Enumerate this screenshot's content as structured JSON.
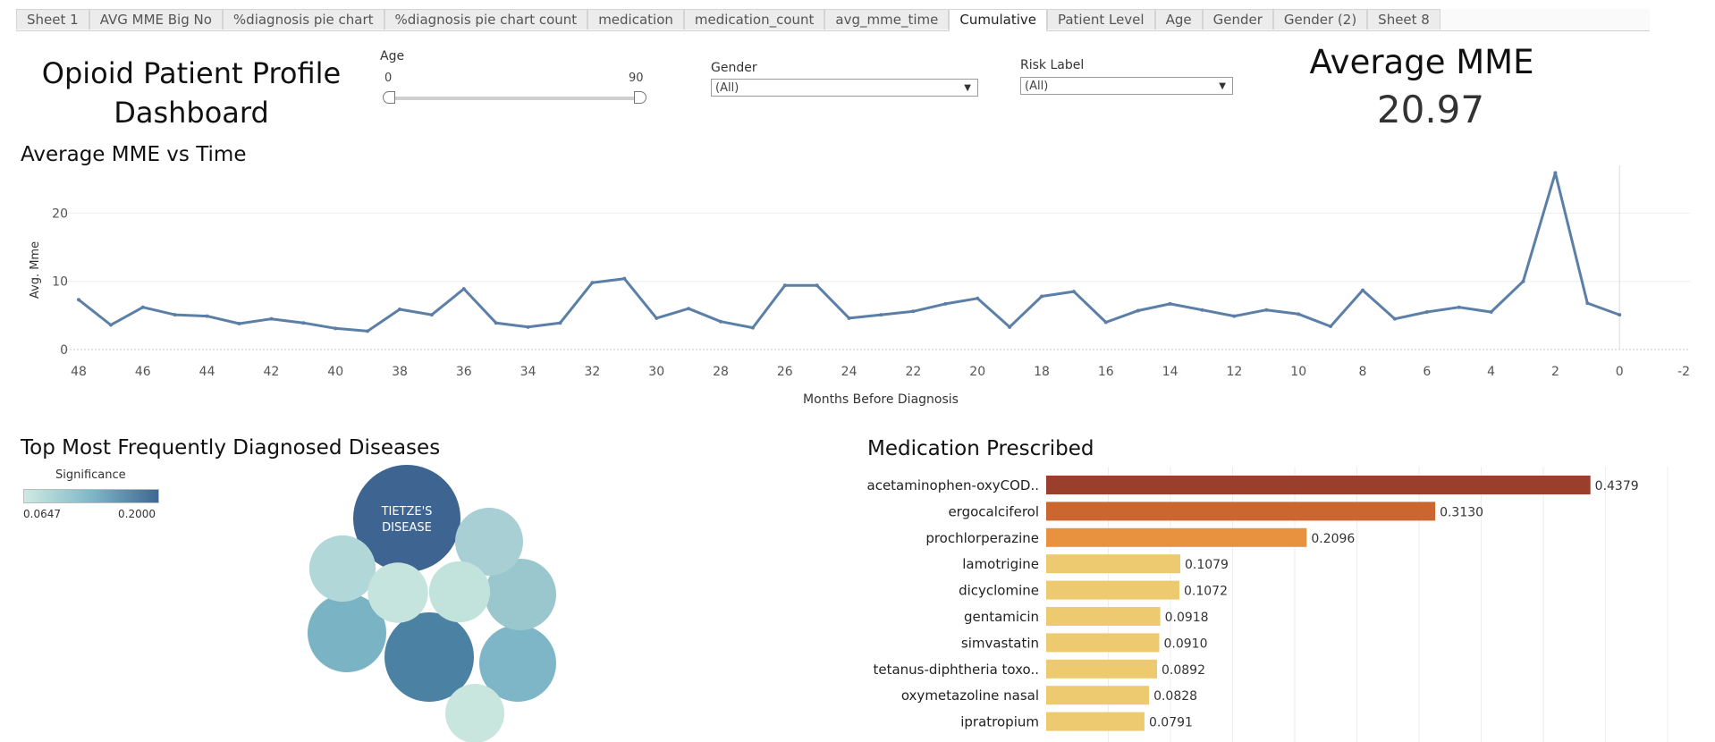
{
  "tabs": [
    {
      "label": "Sheet 1"
    },
    {
      "label": "AVG MME Big No"
    },
    {
      "label": "%diagnosis pie chart"
    },
    {
      "label": "%diagnosis pie chart count"
    },
    {
      "label": "medication"
    },
    {
      "label": "medication_count"
    },
    {
      "label": "avg_mme_time"
    },
    {
      "label": "Cumulative",
      "active": true
    },
    {
      "label": "Patient Level"
    },
    {
      "label": "Age"
    },
    {
      "label": "Gender"
    },
    {
      "label": "Gender (2)"
    },
    {
      "label": "Sheet 8"
    }
  ],
  "dashboard": {
    "title": "Opioid Patient Profile Dashboard"
  },
  "filters": {
    "age": {
      "label": "Age",
      "min_label": "0",
      "max_label": "90",
      "min": 0,
      "max": 90
    },
    "gender": {
      "label": "Gender",
      "value": "(All)"
    },
    "risk": {
      "label": "Risk Label",
      "value": "(All)"
    }
  },
  "kpi": {
    "label": "Average MME",
    "value": "20.97"
  },
  "colors": {
    "line": "#5b7fa6",
    "bar_dark": "#9a3f2c",
    "bar_orange": "#cc6630",
    "bar_light_orange": "#e8913f",
    "bar_yellow": "#edc96f"
  },
  "chart_data": [
    {
      "type": "line",
      "title": "Average MME vs Time",
      "xlabel": "Months Before Diagnosis",
      "ylabel": "Avg. Mme",
      "xlim": [
        48,
        -2
      ],
      "ylim": [
        0,
        27
      ],
      "x_ticks": [
        "48",
        "46",
        "44",
        "42",
        "40",
        "38",
        "36",
        "34",
        "32",
        "30",
        "28",
        "26",
        "24",
        "22",
        "20",
        "18",
        "16",
        "14",
        "12",
        "10",
        "8",
        "6",
        "4",
        "2",
        "0",
        "-2"
      ],
      "y_ticks": [
        "0",
        "10",
        "20"
      ],
      "x": [
        48,
        47,
        46,
        45,
        44,
        43,
        42,
        41,
        40,
        39,
        38,
        37,
        36,
        35,
        34,
        33,
        32,
        31,
        30,
        29,
        28,
        27,
        26,
        25,
        24,
        23,
        22,
        21,
        20,
        19,
        18,
        17,
        16,
        15,
        14,
        13,
        12,
        11,
        10,
        9,
        8,
        7,
        6,
        5,
        4,
        3,
        2,
        1,
        0
      ],
      "values": [
        7.3,
        3.6,
        6.2,
        5.1,
        4.9,
        3.8,
        4.5,
        3.9,
        3.1,
        2.7,
        5.9,
        5.1,
        8.9,
        3.9,
        3.3,
        3.9,
        9.8,
        10.4,
        4.6,
        6.0,
        4.1,
        3.2,
        9.4,
        9.4,
        4.6,
        5.1,
        5.6,
        6.7,
        7.5,
        3.3,
        7.8,
        8.5,
        4.0,
        5.7,
        6.7,
        5.8,
        4.9,
        5.8,
        5.2,
        3.4,
        8.7,
        4.5,
        5.5,
        6.2,
        5.5,
        10.0,
        25.9,
        6.8,
        5.1
      ]
    },
    {
      "type": "bubble",
      "title": "Top Most Frequently Diagnosed Diseases",
      "legend_title": "Significance",
      "legend_min": "0.0647",
      "legend_max": "0.2000",
      "bubbles": [
        {
          "label": "TIETZE'S DISEASE",
          "value": 0.2,
          "color": "#3e6592",
          "label_line1": "TIETZE'S",
          "label_line2": "DISEASE"
        },
        {
          "label": "",
          "value": 0.15,
          "color": "#4b81a3",
          "label_line1": "",
          "label_line2": ""
        },
        {
          "label": "",
          "value": 0.12,
          "color": "#7ab3c4",
          "label_line1": "",
          "label_line2": ""
        },
        {
          "label": "",
          "value": 0.115,
          "color": "#7eb6c7",
          "label_line1": "",
          "label_line2": ""
        },
        {
          "label": "",
          "value": 0.1,
          "color": "#9ac6ce",
          "label_line1": "",
          "label_line2": ""
        },
        {
          "label": "",
          "value": 0.09,
          "color": "#a8d0d4",
          "label_line1": "",
          "label_line2": ""
        },
        {
          "label": "",
          "value": 0.085,
          "color": "#b2d7d8",
          "label_line1": "",
          "label_line2": ""
        },
        {
          "label": "",
          "value": 0.07,
          "color": "#c2e2dc",
          "label_line1": "",
          "label_line2": ""
        },
        {
          "label": "",
          "value": 0.068,
          "color": "#c5e4dd",
          "label_line1": "",
          "label_line2": ""
        },
        {
          "label": "",
          "value": 0.0647,
          "color": "#c8e6de",
          "label_line1": "",
          "label_line2": ""
        }
      ]
    },
    {
      "type": "bar",
      "title": "Medication Prescribed",
      "categories": [
        "acetaminophen-oxyCOD..",
        "ergocalciferol",
        "prochlorperazine",
        "lamotrigine",
        "dicyclomine",
        "gentamicin",
        "simvastatin",
        "tetanus-diphtheria toxo..",
        "oxymetazoline nasal",
        "ipratropium"
      ],
      "values": [
        0.4379,
        0.313,
        0.2096,
        0.1079,
        0.1072,
        0.0918,
        0.091,
        0.0892,
        0.0828,
        0.0791
      ],
      "value_labels": [
        "0.4379",
        "0.3130",
        "0.2096",
        "0.1079",
        "0.1072",
        "0.0918",
        "0.0910",
        "0.0892",
        "0.0828",
        "0.0791"
      ],
      "colors": [
        "#9a3f2c",
        "#cc6630",
        "#e8913f",
        "#edc96f",
        "#edc96f",
        "#edc96f",
        "#edc96f",
        "#edc96f",
        "#edc96f",
        "#edc96f"
      ],
      "xlim": [
        0,
        0.5
      ]
    }
  ]
}
